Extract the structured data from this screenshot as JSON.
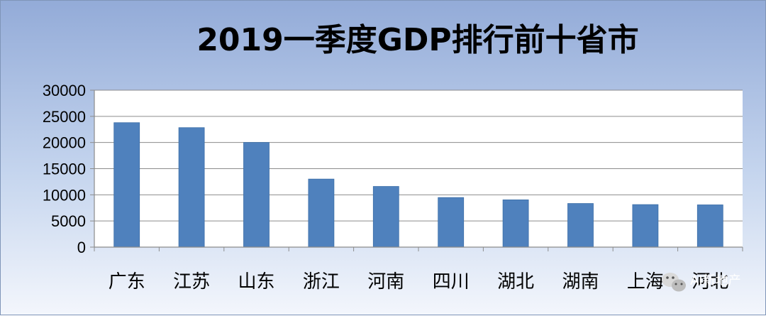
{
  "chart_data": {
    "type": "bar",
    "title": "2019一季度GDP排行前十省市",
    "categories": [
      "广东",
      "江苏",
      "山东",
      "浙江",
      "河南",
      "四川",
      "湖北",
      "湖南",
      "上海",
      "河北"
    ],
    "values": [
      23790,
      22840,
      20010,
      13010,
      11600,
      9480,
      9040,
      8340,
      8130,
      8080
    ],
    "ylim": [
      0,
      30000
    ],
    "yticks": [
      0,
      5000,
      10000,
      15000,
      20000,
      25000,
      30000
    ],
    "grid": true,
    "legend": "none",
    "colors": {
      "bar": "#4f81bd",
      "bar_edge": "#3c6fa8",
      "plot_bg": "#ffffff",
      "grid": "#8c8c8c",
      "axis": "#8c8c8c"
    }
  },
  "watermark": {
    "text": "AI新地产",
    "icon": "wechat-icon"
  }
}
